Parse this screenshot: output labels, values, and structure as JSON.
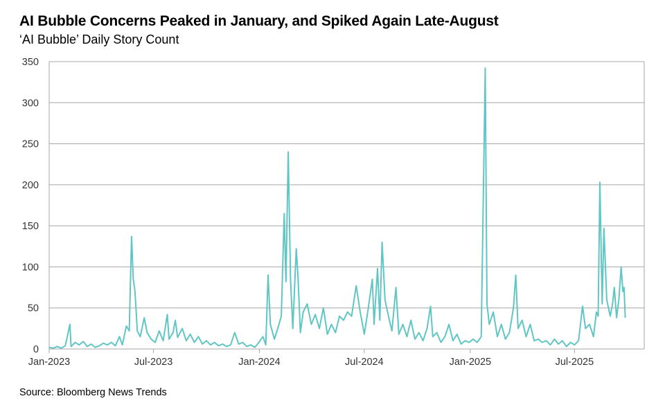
{
  "chart_data": {
    "type": "line",
    "title": "AI Bubble Concerns Peaked in January, and Spiked Again Late-August",
    "subtitle": "‘AI Bubble’ Daily Story Count",
    "source": "Source: Bloomberg News Trends",
    "xlabel": "",
    "ylabel": "",
    "xlim": [
      "2023-01-01",
      "2025-10-30"
    ],
    "ylim": [
      0,
      350
    ],
    "yticks": [
      0,
      50,
      100,
      150,
      200,
      250,
      300,
      350
    ],
    "xticks": [
      {
        "date": "2023-01-01",
        "label": "Jan-2023"
      },
      {
        "date": "2023-07-01",
        "label": "Jul-2023"
      },
      {
        "date": "2024-01-01",
        "label": "Jan-2024"
      },
      {
        "date": "2024-07-01",
        "label": "Jul-2024"
      },
      {
        "date": "2025-01-01",
        "label": "Jan-2025"
      },
      {
        "date": "2025-07-01",
        "label": "Jul-2025"
      }
    ],
    "grid": "horizontal",
    "legend": "none",
    "line_color": "#5fc5c5",
    "series": [
      {
        "points": [
          [
            "2023-01-01",
            2
          ],
          [
            "2023-01-08",
            1
          ],
          [
            "2023-01-15",
            3
          ],
          [
            "2023-01-22",
            1
          ],
          [
            "2023-01-29",
            4
          ],
          [
            "2023-02-06",
            30
          ],
          [
            "2023-02-08",
            3
          ],
          [
            "2023-02-15",
            8
          ],
          [
            "2023-02-22",
            5
          ],
          [
            "2023-03-01",
            9
          ],
          [
            "2023-03-08",
            3
          ],
          [
            "2023-03-15",
            6
          ],
          [
            "2023-03-22",
            2
          ],
          [
            "2023-03-29",
            4
          ],
          [
            "2023-04-05",
            7
          ],
          [
            "2023-04-12",
            5
          ],
          [
            "2023-04-19",
            8
          ],
          [
            "2023-04-26",
            4
          ],
          [
            "2023-05-03",
            15
          ],
          [
            "2023-05-08",
            5
          ],
          [
            "2023-05-15",
            28
          ],
          [
            "2023-05-20",
            22
          ],
          [
            "2023-05-24",
            137
          ],
          [
            "2023-05-27",
            85
          ],
          [
            "2023-05-30",
            70
          ],
          [
            "2023-06-03",
            22
          ],
          [
            "2023-06-08",
            15
          ],
          [
            "2023-06-15",
            38
          ],
          [
            "2023-06-20",
            20
          ],
          [
            "2023-06-27",
            12
          ],
          [
            "2023-07-04",
            8
          ],
          [
            "2023-07-11",
            22
          ],
          [
            "2023-07-18",
            10
          ],
          [
            "2023-07-25",
            42
          ],
          [
            "2023-07-28",
            12
          ],
          [
            "2023-08-04",
            20
          ],
          [
            "2023-08-08",
            35
          ],
          [
            "2023-08-12",
            14
          ],
          [
            "2023-08-20",
            25
          ],
          [
            "2023-08-27",
            10
          ],
          [
            "2023-09-03",
            18
          ],
          [
            "2023-09-10",
            8
          ],
          [
            "2023-09-17",
            15
          ],
          [
            "2023-09-24",
            6
          ],
          [
            "2023-10-01",
            10
          ],
          [
            "2023-10-08",
            5
          ],
          [
            "2023-10-15",
            8
          ],
          [
            "2023-10-22",
            4
          ],
          [
            "2023-10-29",
            6
          ],
          [
            "2023-11-05",
            3
          ],
          [
            "2023-11-12",
            5
          ],
          [
            "2023-11-19",
            20
          ],
          [
            "2023-11-26",
            6
          ],
          [
            "2023-12-03",
            8
          ],
          [
            "2023-12-10",
            3
          ],
          [
            "2023-12-17",
            5
          ],
          [
            "2023-12-24",
            2
          ],
          [
            "2023-12-31",
            8
          ],
          [
            "2024-01-07",
            15
          ],
          [
            "2024-01-12",
            5
          ],
          [
            "2024-01-16",
            90
          ],
          [
            "2024-01-20",
            30
          ],
          [
            "2024-01-27",
            12
          ],
          [
            "2024-02-03",
            28
          ],
          [
            "2024-02-08",
            40
          ],
          [
            "2024-02-13",
            165
          ],
          [
            "2024-02-16",
            82
          ],
          [
            "2024-02-20",
            240
          ],
          [
            "2024-02-24",
            85
          ],
          [
            "2024-02-28",
            25
          ],
          [
            "2024-03-05",
            122
          ],
          [
            "2024-03-08",
            88
          ],
          [
            "2024-03-12",
            20
          ],
          [
            "2024-03-17",
            45
          ],
          [
            "2024-03-24",
            55
          ],
          [
            "2024-03-31",
            30
          ],
          [
            "2024-04-07",
            42
          ],
          [
            "2024-04-14",
            25
          ],
          [
            "2024-04-21",
            50
          ],
          [
            "2024-04-28",
            18
          ],
          [
            "2024-05-05",
            30
          ],
          [
            "2024-05-12",
            20
          ],
          [
            "2024-05-19",
            40
          ],
          [
            "2024-05-26",
            35
          ],
          [
            "2024-06-02",
            45
          ],
          [
            "2024-06-09",
            40
          ],
          [
            "2024-06-17",
            77
          ],
          [
            "2024-06-24",
            45
          ],
          [
            "2024-07-01",
            18
          ],
          [
            "2024-07-08",
            50
          ],
          [
            "2024-07-15",
            85
          ],
          [
            "2024-07-18",
            30
          ],
          [
            "2024-07-24",
            98
          ],
          [
            "2024-07-28",
            35
          ],
          [
            "2024-08-01",
            130
          ],
          [
            "2024-08-06",
            60
          ],
          [
            "2024-08-12",
            40
          ],
          [
            "2024-08-18",
            22
          ],
          [
            "2024-08-25",
            75
          ],
          [
            "2024-08-30",
            18
          ],
          [
            "2024-09-06",
            30
          ],
          [
            "2024-09-13",
            15
          ],
          [
            "2024-09-20",
            35
          ],
          [
            "2024-09-27",
            12
          ],
          [
            "2024-10-04",
            20
          ],
          [
            "2024-10-11",
            10
          ],
          [
            "2024-10-18",
            25
          ],
          [
            "2024-10-24",
            52
          ],
          [
            "2024-10-28",
            15
          ],
          [
            "2024-11-04",
            20
          ],
          [
            "2024-11-11",
            8
          ],
          [
            "2024-11-18",
            15
          ],
          [
            "2024-11-25",
            30
          ],
          [
            "2024-12-02",
            10
          ],
          [
            "2024-12-09",
            18
          ],
          [
            "2024-12-16",
            6
          ],
          [
            "2024-12-23",
            10
          ],
          [
            "2024-12-30",
            8
          ],
          [
            "2025-01-06",
            12
          ],
          [
            "2025-01-13",
            8
          ],
          [
            "2025-01-20",
            15
          ],
          [
            "2025-01-27",
            342
          ],
          [
            "2025-01-30",
            55
          ],
          [
            "2025-02-03",
            30
          ],
          [
            "2025-02-10",
            45
          ],
          [
            "2025-02-17",
            15
          ],
          [
            "2025-02-24",
            30
          ],
          [
            "2025-03-03",
            12
          ],
          [
            "2025-03-10",
            20
          ],
          [
            "2025-03-17",
            50
          ],
          [
            "2025-03-21",
            90
          ],
          [
            "2025-03-25",
            25
          ],
          [
            "2025-04-01",
            35
          ],
          [
            "2025-04-08",
            15
          ],
          [
            "2025-04-15",
            30
          ],
          [
            "2025-04-22",
            10
          ],
          [
            "2025-04-29",
            12
          ],
          [
            "2025-05-06",
            8
          ],
          [
            "2025-05-13",
            10
          ],
          [
            "2025-05-20",
            5
          ],
          [
            "2025-05-27",
            12
          ],
          [
            "2025-06-03",
            6
          ],
          [
            "2025-06-10",
            10
          ],
          [
            "2025-06-17",
            3
          ],
          [
            "2025-06-24",
            8
          ],
          [
            "2025-07-01",
            5
          ],
          [
            "2025-07-08",
            10
          ],
          [
            "2025-07-15",
            52
          ],
          [
            "2025-07-20",
            25
          ],
          [
            "2025-07-27",
            30
          ],
          [
            "2025-08-03",
            15
          ],
          [
            "2025-08-08",
            45
          ],
          [
            "2025-08-11",
            40
          ],
          [
            "2025-08-14",
            203
          ],
          [
            "2025-08-18",
            55
          ],
          [
            "2025-08-21",
            147
          ],
          [
            "2025-08-26",
            60
          ],
          [
            "2025-09-01",
            40
          ],
          [
            "2025-09-05",
            55
          ],
          [
            "2025-09-08",
            75
          ],
          [
            "2025-09-12",
            38
          ],
          [
            "2025-09-16",
            60
          ],
          [
            "2025-09-20",
            100
          ],
          [
            "2025-09-23",
            70
          ],
          [
            "2025-09-25",
            75
          ],
          [
            "2025-09-27",
            38
          ]
        ]
      }
    ]
  }
}
